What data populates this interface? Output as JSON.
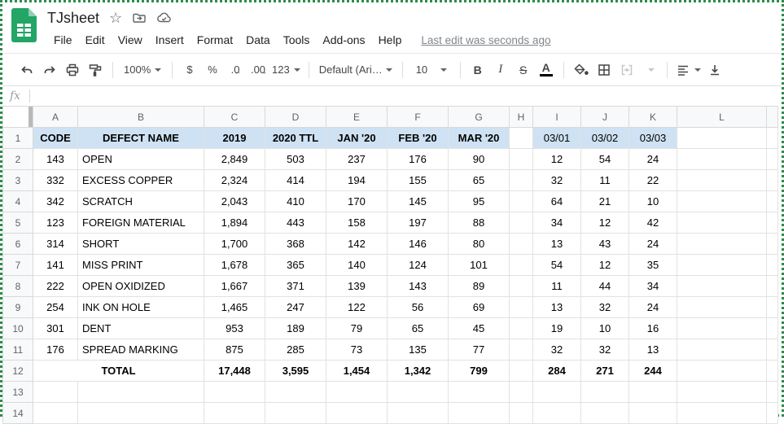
{
  "titlebar": {
    "title": "TJsheet"
  },
  "icons": {
    "star": "☆",
    "arrow_left": "←",
    "arrow_right": "→"
  },
  "menu": {
    "items": [
      "File",
      "Edit",
      "View",
      "Insert",
      "Format",
      "Data",
      "Tools",
      "Add-ons",
      "Help"
    ],
    "last_edit": "Last edit was seconds ago"
  },
  "toolbar": {
    "zoom": "100%",
    "currency": "$",
    "percent": "%",
    "dec_decrease": ".0",
    "dec_increase": ".00",
    "more_formats": "123",
    "font_name": "Default (Ari…",
    "font_size": "10",
    "bold": "B",
    "italic": "I",
    "strikethrough": "S",
    "text_color": "A"
  },
  "formula_bar": {
    "fx": "fx",
    "value": ""
  },
  "sheet": {
    "col_headers": [
      "A",
      "B",
      "C",
      "D",
      "E",
      "F",
      "G",
      "H",
      "I",
      "J",
      "K",
      "L"
    ],
    "row_headers": [
      "1",
      "2",
      "3",
      "4",
      "5",
      "6",
      "7",
      "8",
      "9",
      "10",
      "11",
      "12",
      "13",
      "14"
    ],
    "header_fill": "#cfe2f3",
    "rows": [
      {
        "type": "header",
        "cells": [
          "CODE",
          "DEFECT NAME",
          "2019",
          "2020 TTL",
          "JAN '20",
          "FEB '20",
          "MAR '20",
          "",
          "03/01",
          "03/02",
          "03/03"
        ]
      },
      {
        "type": "data",
        "cells": [
          "143",
          "OPEN",
          "2,849",
          "503",
          "237",
          "176",
          "90",
          "",
          "12",
          "54",
          "24"
        ]
      },
      {
        "type": "data",
        "cells": [
          "332",
          "EXCESS COPPER",
          "2,324",
          "414",
          "194",
          "155",
          "65",
          "",
          "32",
          "11",
          "22"
        ]
      },
      {
        "type": "data",
        "cells": [
          "342",
          "SCRATCH",
          "2,043",
          "410",
          "170",
          "145",
          "95",
          "",
          "64",
          "21",
          "10"
        ]
      },
      {
        "type": "data",
        "cells": [
          "123",
          "FOREIGN MATERIAL",
          "1,894",
          "443",
          "158",
          "197",
          "88",
          "",
          "34",
          "12",
          "42"
        ]
      },
      {
        "type": "data",
        "cells": [
          "314",
          "SHORT",
          "1,700",
          "368",
          "142",
          "146",
          "80",
          "",
          "13",
          "43",
          "24"
        ]
      },
      {
        "type": "data",
        "cells": [
          "141",
          "MISS PRINT",
          "1,678",
          "365",
          "140",
          "124",
          "101",
          "",
          "54",
          "12",
          "35"
        ]
      },
      {
        "type": "data",
        "cells": [
          "222",
          "OPEN OXIDIZED",
          "1,667",
          "371",
          "139",
          "143",
          "89",
          "",
          "11",
          "44",
          "34"
        ]
      },
      {
        "type": "data",
        "cells": [
          "254",
          "INK ON HOLE",
          "1,465",
          "247",
          "122",
          "56",
          "69",
          "",
          "13",
          "32",
          "24"
        ]
      },
      {
        "type": "data",
        "cells": [
          "301",
          "DENT",
          "953",
          "189",
          "79",
          "65",
          "45",
          "",
          "19",
          "10",
          "16"
        ]
      },
      {
        "type": "data",
        "cells": [
          "176",
          "SPREAD MARKING",
          "875",
          "285",
          "73",
          "135",
          "77",
          "",
          "32",
          "32",
          "13"
        ]
      },
      {
        "type": "total",
        "cells": [
          "",
          "TOTAL",
          "17,448",
          "3,595",
          "1,454",
          "1,342",
          "799",
          "",
          "284",
          "271",
          "244"
        ]
      },
      {
        "type": "empty",
        "cells": [
          "",
          "",
          "",
          "",
          "",
          "",
          "",
          "",
          "",
          "",
          ""
        ]
      },
      {
        "type": "empty",
        "cells": [
          "",
          "",
          "",
          "",
          "",
          "",
          "",
          "",
          "",
          "",
          ""
        ]
      }
    ]
  }
}
